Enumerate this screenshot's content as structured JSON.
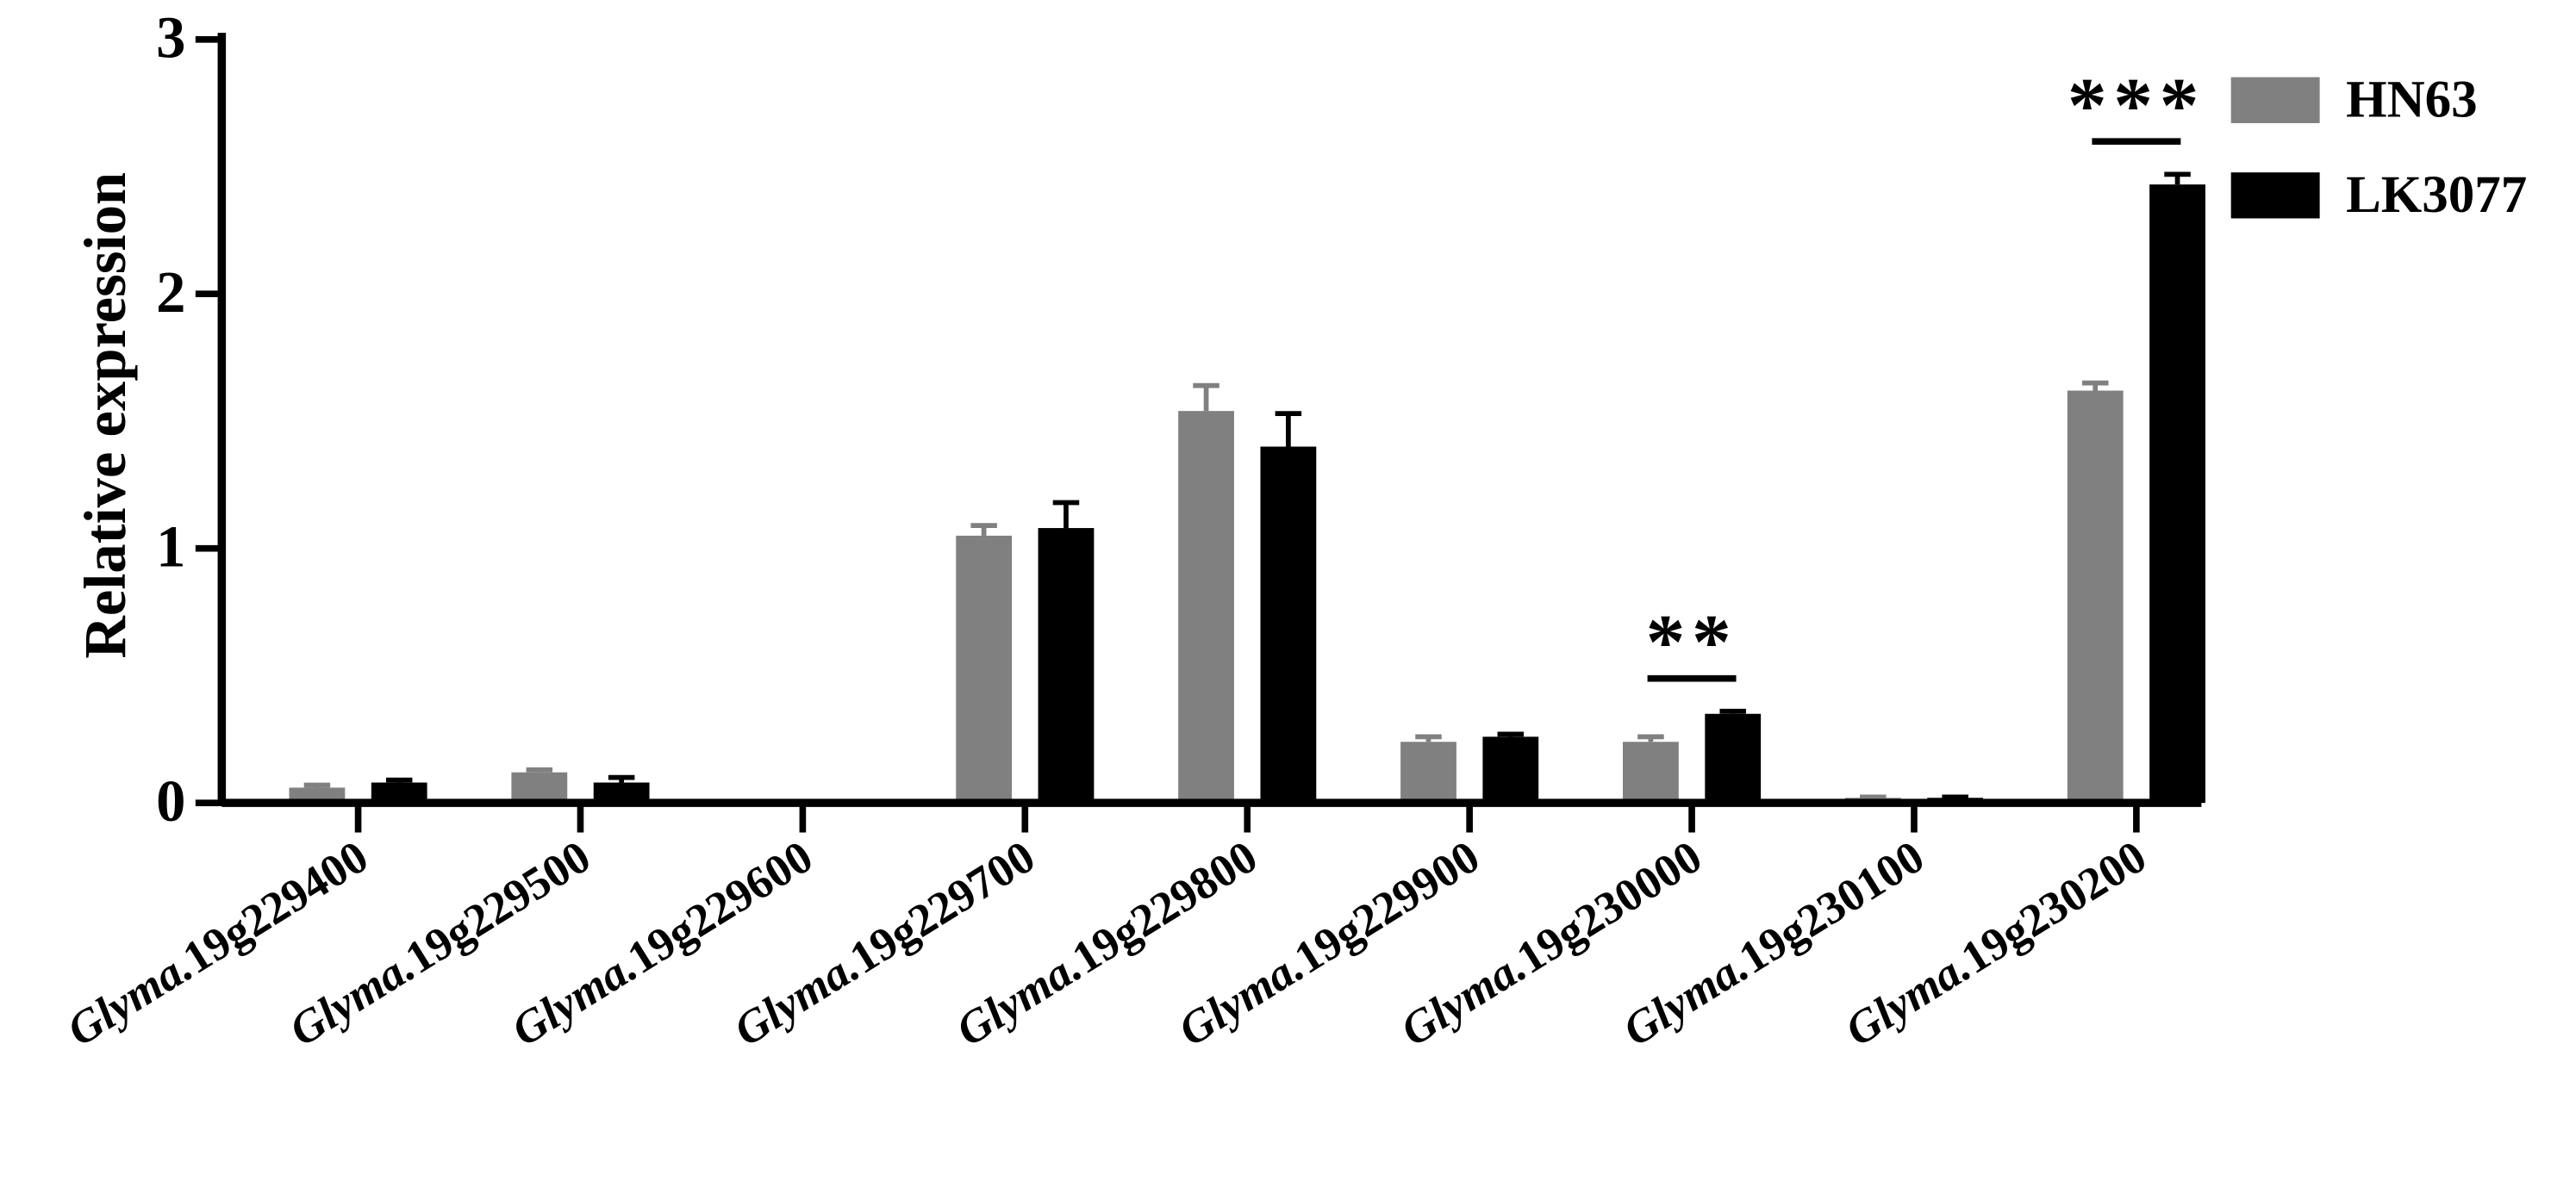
{
  "chart_data": {
    "type": "bar",
    "ylabel": "Relative expression",
    "ylim": [
      0,
      3
    ],
    "yticks": [
      "0",
      "1",
      "2",
      "3"
    ],
    "categories": [
      "Glyma.19g229400",
      "Glyma.19g229500",
      "Glyma.19g229600",
      "Glyma.19g229700",
      "Glyma.19g229800",
      "Glyma.19g229900",
      "Glyma.19g230000",
      "Glyma.19g230100",
      "Glyma.19g230200"
    ],
    "series": [
      {
        "name": "HN63",
        "color": "#808080",
        "values": [
          0.06,
          0.12,
          0.0,
          1.05,
          1.54,
          0.24,
          0.24,
          0.02,
          1.62
        ],
        "errors": [
          0.01,
          0.01,
          0.0,
          0.04,
          0.1,
          0.02,
          0.02,
          0.003,
          0.03
        ]
      },
      {
        "name": "LK3077",
        "color": "#000000",
        "values": [
          0.08,
          0.08,
          0.0,
          1.08,
          1.4,
          0.26,
          0.35,
          0.02,
          2.43
        ],
        "errors": [
          0.01,
          0.02,
          0.0,
          0.1,
          0.13,
          0.01,
          0.01,
          0.003,
          0.04
        ]
      }
    ],
    "significance": [
      {
        "category": "Glyma.19g230000",
        "label": "**"
      },
      {
        "category": "Glyma.19g230200",
        "label": "***"
      }
    ],
    "legend": "top-right",
    "grid": false
  }
}
